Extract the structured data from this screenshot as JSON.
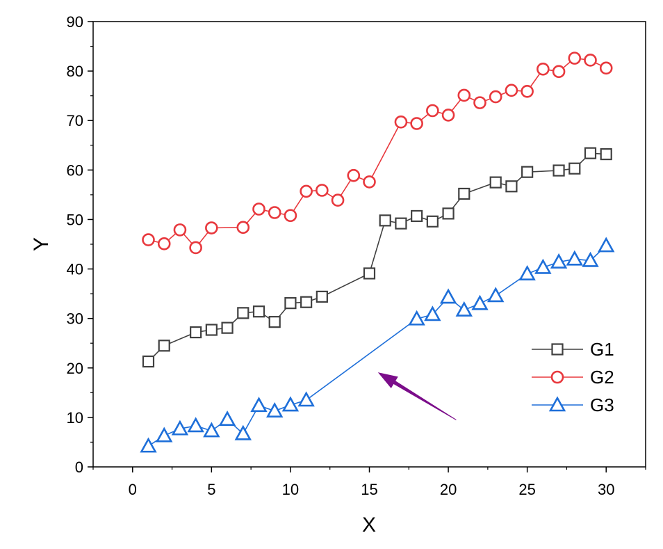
{
  "chart_data": {
    "type": "line",
    "title": "",
    "xlabel": "X",
    "ylabel": "Y",
    "xlim": [
      -2.5,
      32.5
    ],
    "ylim": [
      0,
      90
    ],
    "x_ticks": [
      0,
      5,
      10,
      15,
      20,
      25,
      30
    ],
    "y_ticks": [
      0,
      10,
      20,
      30,
      40,
      50,
      60,
      70,
      80,
      90
    ],
    "x_tick_labels": [
      "0",
      "5",
      "10",
      "15",
      "20",
      "25",
      "30"
    ],
    "y_tick_labels": [
      "0",
      "10",
      "20",
      "30",
      "40",
      "50",
      "60",
      "70",
      "80",
      "90"
    ],
    "grid": false,
    "legend_position": "center-right",
    "series": [
      {
        "name": "G1",
        "marker": "square",
        "color": "#404040",
        "points": [
          [
            1,
            21.3
          ],
          [
            2,
            24.5
          ],
          [
            4,
            27.2
          ],
          [
            5,
            27.7
          ],
          [
            6,
            28.1
          ],
          [
            7,
            31.1
          ],
          [
            8,
            31.4
          ],
          [
            9,
            29.3
          ],
          [
            10,
            33.1
          ],
          [
            11,
            33.3
          ],
          [
            12,
            34.4
          ],
          [
            15,
            39.1
          ],
          [
            16,
            49.8
          ],
          [
            17,
            49.2
          ],
          [
            18,
            50.7
          ],
          [
            19,
            49.6
          ],
          [
            20,
            51.2
          ],
          [
            21,
            55.2
          ],
          [
            23,
            57.5
          ],
          [
            24,
            56.7
          ],
          [
            25,
            59.6
          ],
          [
            27,
            59.9
          ],
          [
            28,
            60.3
          ],
          [
            29,
            63.4
          ],
          [
            30,
            63.2
          ]
        ]
      },
      {
        "name": "G2",
        "marker": "circle",
        "color": "#e8383d",
        "points": [
          [
            1,
            45.9
          ],
          [
            2,
            45.1
          ],
          [
            3,
            47.9
          ],
          [
            4,
            44.3
          ],
          [
            5,
            48.3
          ],
          [
            7,
            48.4
          ],
          [
            8,
            52.1
          ],
          [
            9,
            51.4
          ],
          [
            10,
            50.8
          ],
          [
            11,
            55.7
          ],
          [
            12,
            55.9
          ],
          [
            13,
            53.9
          ],
          [
            14,
            58.9
          ],
          [
            15,
            57.6
          ],
          [
            17,
            69.7
          ],
          [
            18,
            69.4
          ],
          [
            19,
            72.0
          ],
          [
            20,
            71.1
          ],
          [
            21,
            75.1
          ],
          [
            22,
            73.6
          ],
          [
            23,
            74.8
          ],
          [
            24,
            76.1
          ],
          [
            25,
            75.9
          ],
          [
            26,
            80.4
          ],
          [
            27,
            79.9
          ],
          [
            28,
            82.6
          ],
          [
            29,
            82.2
          ],
          [
            30,
            80.6
          ]
        ]
      },
      {
        "name": "G3",
        "marker": "triangle",
        "color": "#1e6fd9",
        "points": [
          [
            1,
            4.2
          ],
          [
            2,
            6.3
          ],
          [
            3,
            7.7
          ],
          [
            4,
            8.3
          ],
          [
            5,
            7.3
          ],
          [
            6,
            9.6
          ],
          [
            7,
            6.7
          ],
          [
            8,
            12.4
          ],
          [
            9,
            11.3
          ],
          [
            10,
            12.5
          ],
          [
            11,
            13.5
          ],
          [
            18,
            29.9
          ],
          [
            19,
            30.8
          ],
          [
            20,
            34.3
          ],
          [
            21,
            31.7
          ],
          [
            22,
            33.0
          ],
          [
            23,
            34.6
          ],
          [
            25,
            39.0
          ],
          [
            26,
            40.3
          ],
          [
            27,
            41.4
          ],
          [
            28,
            42.0
          ],
          [
            29,
            41.7
          ],
          [
            30,
            44.7
          ]
        ]
      }
    ],
    "annotations": [
      {
        "type": "arrow",
        "color": "#7b0d8a",
        "from": [
          20.5,
          9.5
        ],
        "to": [
          15.6,
          19.0
        ]
      }
    ]
  }
}
